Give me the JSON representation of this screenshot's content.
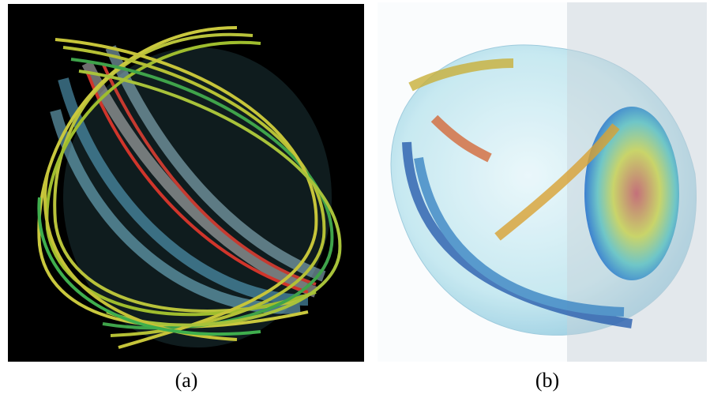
{
  "captions": [
    "(a)",
    "(b)"
  ]
}
